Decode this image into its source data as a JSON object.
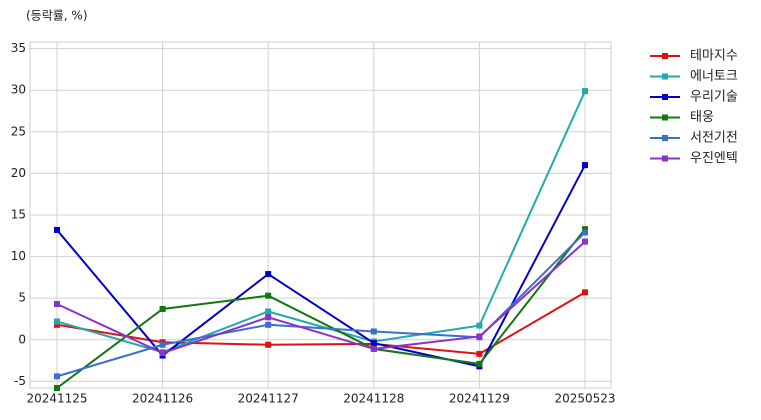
{
  "chart_data": {
    "type": "line",
    "y_label": "(등락률, %)",
    "categories": [
      "20241125",
      "20241126",
      "20241127",
      "20241128",
      "20241129",
      "20250523"
    ],
    "series": [
      {
        "name": "테마지수",
        "color": "#dd1111",
        "values": [
          1.8,
          -0.3,
          -0.6,
          -0.5,
          -1.7,
          5.7
        ]
      },
      {
        "name": "에너토크",
        "color": "#22aaaa",
        "values": [
          2.2,
          -1.5,
          3.4,
          -0.2,
          1.7,
          29.9
        ]
      },
      {
        "name": "우리기술",
        "color": "#0000cc",
        "values": [
          13.2,
          -1.9,
          7.9,
          -0.4,
          -3.2,
          21.0
        ]
      },
      {
        "name": "태웅",
        "color": "#117711",
        "values": [
          -5.8,
          3.7,
          5.3,
          -1.1,
          -2.9,
          13.3
        ]
      },
      {
        "name": "서전기전",
        "color": "#3a6fcc",
        "values": [
          -4.4,
          -0.6,
          1.8,
          1.0,
          0.3,
          12.9
        ]
      },
      {
        "name": "우진엔텍",
        "color": "#8833cc",
        "values": [
          4.3,
          -1.6,
          2.7,
          -1.1,
          0.4,
          11.8
        ]
      }
    ],
    "ylim": [
      -5.8,
      35.8
    ],
    "yticks": [
      -5,
      0,
      5,
      10,
      15,
      20,
      25,
      30,
      35
    ],
    "grid": true,
    "legend": "right"
  }
}
